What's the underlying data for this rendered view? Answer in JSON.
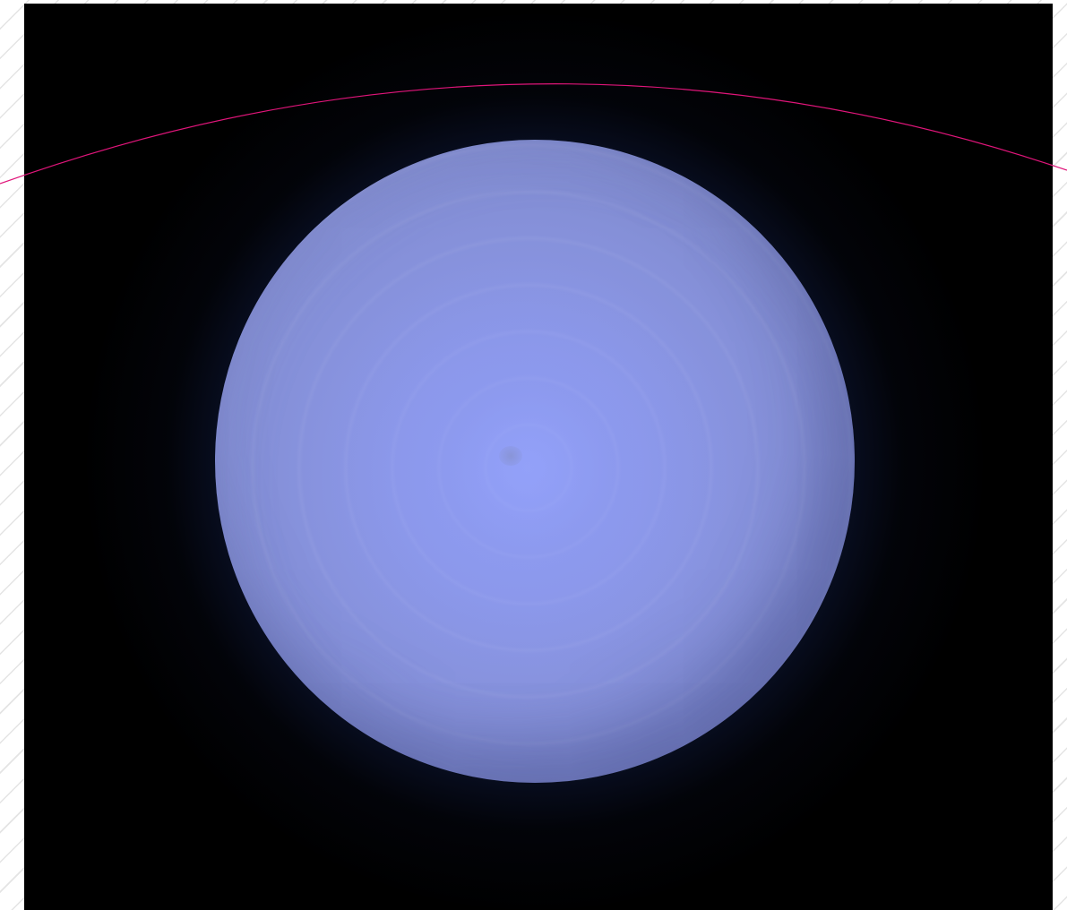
{
  "scene": {
    "subject": "illuminated-sphere",
    "colors": {
      "background": "#000000",
      "sphere": "#8c98ea",
      "glow": "#3a5ab0",
      "arc_line": "#e0157a",
      "page_hatch": "#e1e1e1"
    }
  }
}
